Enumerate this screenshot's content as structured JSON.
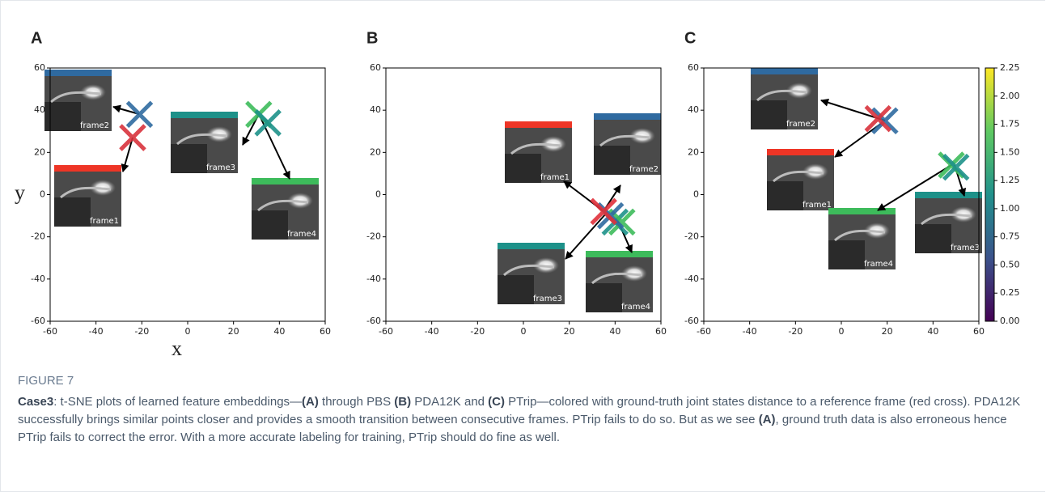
{
  "chart_data": [
    {
      "type": "scatter",
      "panel_label": "A",
      "xlabel": "x",
      "ylabel": "y",
      "xlim": [
        -60,
        60
      ],
      "ylim": [
        -60,
        60
      ],
      "xticks": [
        -60,
        -40,
        -20,
        0,
        20,
        40,
        60
      ],
      "yticks": [
        -60,
        -40,
        -20,
        0,
        20,
        40,
        60
      ],
      "x": [
        -21,
        -24,
        31,
        35
      ],
      "values": [
        38,
        27,
        38,
        34
      ],
      "colors": [
        "#2f6aa0",
        "#d8323c",
        "#3dbb5b",
        "#1d9189"
      ],
      "frames": [
        {
          "label": "frame1",
          "color": "#ee3526"
        },
        {
          "label": "frame2",
          "color": "#2f6aa0"
        },
        {
          "label": "frame3",
          "color": "#1d9189"
        },
        {
          "label": "frame4",
          "color": "#3dbb5b"
        }
      ]
    },
    {
      "type": "scatter",
      "panel_label": "B",
      "xlim": [
        -60,
        60
      ],
      "ylim": [
        -60,
        60
      ],
      "xticks": [
        -60,
        -40,
        -20,
        0,
        20,
        40,
        60
      ],
      "yticks": [
        -60,
        -40,
        -20,
        0,
        20,
        40,
        60
      ],
      "x": [
        40,
        43,
        38,
        35
      ],
      "values": [
        -13,
        -13,
        -10,
        -8
      ],
      "colors": [
        "#1d9189",
        "#3dbb5b",
        "#2f6aa0",
        "#e0303a"
      ],
      "frames": [
        {
          "label": "frame1",
          "color": "#ee3526"
        },
        {
          "label": "frame2",
          "color": "#2f6aa0"
        },
        {
          "label": "frame3",
          "color": "#1d9189"
        },
        {
          "label": "frame4",
          "color": "#3dbb5b"
        }
      ]
    },
    {
      "type": "scatter",
      "panel_label": "C",
      "xlim": [
        -60,
        60
      ],
      "ylim": [
        -60,
        60
      ],
      "xticks": [
        -60,
        -40,
        -20,
        0,
        20,
        40,
        60
      ],
      "yticks": [
        -60,
        -40,
        -20,
        0,
        20,
        40,
        60
      ],
      "x": [
        19,
        16,
        48,
        50
      ],
      "values": [
        35,
        36,
        14,
        13
      ],
      "colors": [
        "#2f6aa0",
        "#d8323c",
        "#3dbb5b",
        "#1d9189"
      ],
      "frames": [
        {
          "label": "frame1",
          "color": "#ee3526"
        },
        {
          "label": "frame2",
          "color": "#2f6aa0"
        },
        {
          "label": "frame3",
          "color": "#1d9189"
        },
        {
          "label": "frame4",
          "color": "#3dbb5b"
        }
      ],
      "colormap": "viridis",
      "clim": [
        0,
        2.25
      ],
      "cticks": [
        {
          "value": 0,
          "label": "0.00"
        },
        0.25,
        {
          "value": 0.5,
          "label": "0.50"
        },
        0.75,
        {
          "value": 1,
          "label": "1.00"
        },
        1.25,
        {
          "value": 1.5,
          "label": "1.50"
        },
        1.75,
        {
          "value": 2,
          "label": "2.00"
        },
        2.25
      ]
    }
  ],
  "caption": {
    "label": "FIGURE 7",
    "segments": [
      {
        "text": "Case3",
        "bold": true
      },
      {
        "text": ": t-SNE plots of learned feature embeddings—"
      },
      {
        "text": "(A)",
        "bold": true
      },
      {
        "text": " through PBS "
      },
      {
        "text": "(B)",
        "bold": true
      },
      {
        "text": " PDA12K and "
      },
      {
        "text": "(C)",
        "bold": true
      },
      {
        "text": " PTrip—colored with ground-truth joint states distance to a reference frame (red cross). PDA12K successfully brings similar points closer and provides a smooth transition between consecutive frames. PTrip fails to do so. But as we see "
      },
      {
        "text": "(A)",
        "bold": true
      },
      {
        "text": ", ground truth data is also erroneous hence PTrip fails to correct the error. With a more accurate labeling for training, PTrip should do fine as well."
      }
    ]
  }
}
